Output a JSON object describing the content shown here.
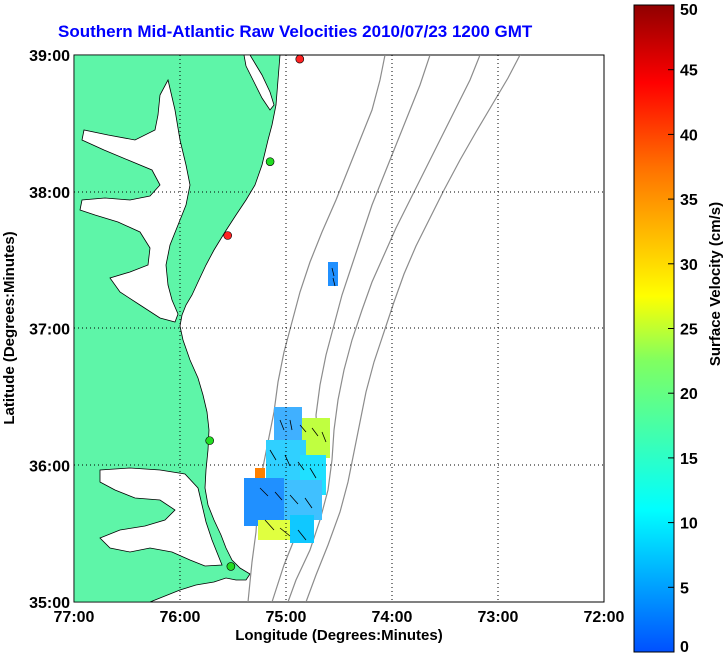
{
  "title": "Southern Mid-Atlantic Raw Velocities 2010/07/23 1200 GMT",
  "x_axis": {
    "label": "Longitude (Degrees:Minutes)",
    "ticks": [
      "77:00",
      "76:00",
      "75:00",
      "74:00",
      "73:00",
      "72:00"
    ]
  },
  "y_axis": {
    "label": "Latitude (Degrees:Minutes)",
    "ticks": [
      "39:00",
      "38:00",
      "37:00",
      "36:00",
      "35:00"
    ]
  },
  "colorbar": {
    "label": "Surface Velocity (cm/s)",
    "ticks": [
      "50",
      "45",
      "40",
      "35",
      "30",
      "25",
      "20",
      "15",
      "10",
      "5",
      "0"
    ]
  },
  "colors": {
    "land": "#5ef5a8",
    "coast": "#000000",
    "bathymetry": "#8c8c8c",
    "title": "#0000ff",
    "station_active": "#22dd22",
    "station_inactive": "#ff2222"
  },
  "chart_data": {
    "type": "map",
    "extent": {
      "lon": [
        -77,
        -72
      ],
      "lat": [
        35,
        39
      ]
    },
    "grid": true,
    "colorbar_range": [
      0,
      50
    ],
    "stations": [
      {
        "lon": -74.87,
        "lat": 38.97,
        "status": "inactive"
      },
      {
        "lon": -75.15,
        "lat": 38.22,
        "status": "active"
      },
      {
        "lon": -75.55,
        "lat": 37.68,
        "status": "inactive"
      },
      {
        "lon": -75.72,
        "lat": 36.18,
        "status": "active"
      },
      {
        "lon": -75.52,
        "lat": 35.26,
        "status": "active"
      }
    ],
    "velocity_fields": [
      {
        "region": "offshore-patch",
        "lon": [
          -74.55,
          -74.45
        ],
        "lat": [
          37.27,
          37.45
        ],
        "speed_cm_s": 8
      },
      {
        "region": "hatteras-field",
        "lon": [
          -75.4,
          -74.5
        ],
        "lat": [
          35.35,
          36.45
        ],
        "speed_cm_s_range": [
          5,
          28
        ]
      }
    ]
  }
}
